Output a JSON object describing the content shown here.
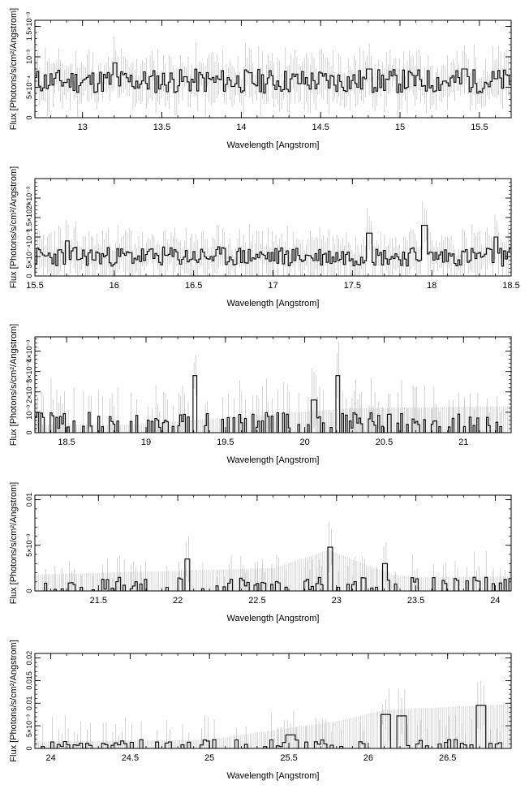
{
  "chart_data": [
    {
      "type": "line",
      "xlabel": "Wavelength [Angstrom]",
      "ylabel": "Flux [Photons/s/cm²/Angstrom]",
      "xlim": [
        12.7,
        15.7
      ],
      "ylim": [
        0,
        0.0016
      ],
      "x_ticks": [
        13,
        13.5,
        14,
        14.5,
        15,
        15.5
      ],
      "x_tick_labels": [
        "13",
        "13.5",
        "14",
        "14.5",
        "15",
        "15.5"
      ],
      "y_ticks": [
        0,
        0.0005,
        0.001,
        0.0015
      ],
      "y_tick_labels": [
        "0",
        "5×10⁻⁴",
        "10⁻³",
        "1.5×10⁻³"
      ],
      "baseline": 0.0006,
      "spread": 0.0002,
      "peaks": [
        [
          13.2,
          0.0009
        ],
        [
          14.8,
          0.0008
        ],
        [
          15.4,
          0.0008
        ]
      ],
      "err": 0.0003,
      "bin": 0.012,
      "seed": 11,
      "gray_band": []
    },
    {
      "type": "line",
      "xlabel": "Wavelength [Angstrom]",
      "ylabel": "Flux [Photons/s/cm²/Angstrom]",
      "xlim": [
        15.5,
        18.5
      ],
      "ylim": [
        0,
        0.0025
      ],
      "x_ticks": [
        15.5,
        16,
        16.5,
        17,
        17.5,
        18,
        18.5
      ],
      "x_tick_labels": [
        "15.5",
        "16",
        "16.5",
        "17",
        "17.5",
        "18",
        "18.5"
      ],
      "y_ticks": [
        0,
        0.0005,
        0.001,
        0.0015,
        0.002
      ],
      "y_tick_labels": [
        "0",
        "5×10⁻⁴",
        "10⁻³",
        "1.5×10⁻³",
        "2×10⁻³"
      ],
      "baseline": 0.0005,
      "spread": 0.00025,
      "peaks": [
        [
          15.7,
          0.0009
        ],
        [
          17.6,
          0.0011
        ],
        [
          17.95,
          0.0013
        ],
        [
          18.4,
          0.001
        ]
      ],
      "err": 0.00045,
      "bin": 0.012,
      "seed": 23,
      "gray_band": []
    },
    {
      "type": "line",
      "xlabel": "Wavelength [Angstrom]",
      "ylabel": "Flux [Photons/s/cm²/Angstrom]",
      "xlim": [
        18.3,
        21.3
      ],
      "ylim": [
        0,
        0.0047
      ],
      "x_ticks": [
        18.5,
        19,
        19.5,
        20,
        20.5,
        21
      ],
      "x_tick_labels": [
        "18.5",
        "19",
        "19.5",
        "20",
        "20.5",
        "21"
      ],
      "y_ticks": [
        0,
        0.001,
        0.002,
        0.003,
        0.004
      ],
      "y_tick_labels": [
        "0",
        "10⁻³",
        "2×10⁻³",
        "3×10⁻³",
        "4×10⁻³"
      ],
      "baseline": 0.0006,
      "spread": 0.0004,
      "peaks": [
        [
          19.3,
          0.0028
        ],
        [
          20.2,
          0.0028
        ],
        [
          20.05,
          0.0016
        ]
      ],
      "err": 0.0012,
      "bin": 0.012,
      "seed": 37,
      "gray_band": [
        [
          18.9,
          0.0004
        ],
        [
          20.3,
          0.0012
        ],
        [
          21.3,
          0.0013
        ]
      ]
    },
    {
      "type": "line",
      "xlabel": "Wavelength [Angstrom]",
      "ylabel": "Flux [Photons/s/cm²/Angstrom]",
      "xlim": [
        21.1,
        24.1
      ],
      "ylim": [
        0,
        0.0105
      ],
      "x_ticks": [
        21.5,
        22,
        22.5,
        23,
        23.5,
        24
      ],
      "x_tick_labels": [
        "21.5",
        "22",
        "22.5",
        "23",
        "23.5",
        "24"
      ],
      "y_ticks": [
        0,
        0.005,
        0.01
      ],
      "y_tick_labels": [
        "0",
        "5×10⁻³",
        "0.01"
      ],
      "baseline": 0.0008,
      "spread": 0.0007,
      "peaks": [
        [
          22.05,
          0.0035
        ],
        [
          22.95,
          0.0048
        ],
        [
          23.3,
          0.003
        ]
      ],
      "err": 0.002,
      "bin": 0.015,
      "seed": 53,
      "gray_band": [
        [
          21.1,
          0.0018
        ],
        [
          22.6,
          0.0025
        ],
        [
          22.95,
          0.0045
        ],
        [
          23.35,
          0.0018
        ],
        [
          23.5,
          0.0015
        ],
        [
          24.1,
          0.0016
        ]
      ]
    },
    {
      "type": "line",
      "xlabel": "Wavelength [Angstrom]",
      "ylabel": "Flux [Photons/s/cm²/Angstrom]",
      "xlim": [
        23.9,
        26.9
      ],
      "ylim": [
        0,
        0.021
      ],
      "x_ticks": [
        24,
        24.5,
        25,
        25.5,
        26,
        26.5
      ],
      "x_tick_labels": [
        "24",
        "24.5",
        "25",
        "25.5",
        "26",
        "26.5"
      ],
      "y_ticks": [
        0,
        0.005,
        0.01,
        0.015,
        0.02
      ],
      "y_tick_labels": [
        "0",
        "5×10⁻³",
        "0.01",
        "0.015",
        "0.02"
      ],
      "baseline": 0.0012,
      "spread": 0.0008,
      "peaks": [
        [
          25.5,
          0.003
        ],
        [
          26.1,
          0.0075
        ],
        [
          26.2,
          0.0072
        ],
        [
          26.7,
          0.0095
        ]
      ],
      "err": 0.004,
      "bin": 0.02,
      "seed": 71,
      "gray_band": [
        [
          23.9,
          0.0015
        ],
        [
          25.0,
          0.002
        ],
        [
          25.8,
          0.006
        ],
        [
          26.1,
          0.0085
        ],
        [
          26.9,
          0.0098
        ]
      ]
    }
  ]
}
